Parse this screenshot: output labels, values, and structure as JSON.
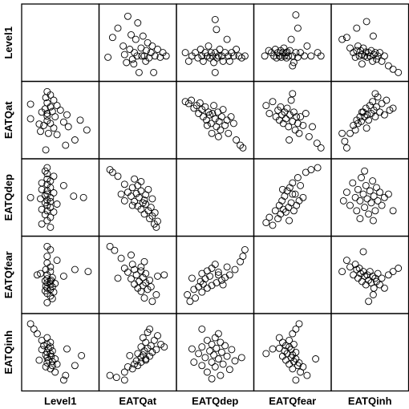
{
  "chart_data": {
    "type": "scatter",
    "title": "",
    "variables": [
      "Level1",
      "EATQat",
      "EATQdep",
      "EATQfear",
      "EATQinh"
    ],
    "grid": false,
    "lower_triangle_mirrors_upper": true,
    "pairs": [
      {
        "x": "EATQat",
        "y": "Level1",
        "points": [
          [
            0.05,
            0.28
          ],
          [
            0.12,
            0.58
          ],
          [
            0.2,
            0.72
          ],
          [
            0.28,
            0.45
          ],
          [
            0.33,
            0.2
          ],
          [
            0.35,
            0.9
          ],
          [
            0.38,
            0.4
          ],
          [
            0.4,
            0.62
          ],
          [
            0.42,
            0.25
          ],
          [
            0.45,
            0.35
          ],
          [
            0.47,
            0.55
          ],
          [
            0.49,
            0.3
          ],
          [
            0.5,
            0.8
          ],
          [
            0.52,
            0.05
          ],
          [
            0.55,
            0.42
          ],
          [
            0.58,
            0.6
          ],
          [
            0.6,
            0.3
          ],
          [
            0.62,
            0.22
          ],
          [
            0.63,
            0.38
          ],
          [
            0.65,
            0.5
          ],
          [
            0.67,
            0.27
          ],
          [
            0.7,
            0.35
          ],
          [
            0.72,
            0.45
          ],
          [
            0.74,
            0.05
          ],
          [
            0.76,
            0.3
          ],
          [
            0.8,
            0.4
          ],
          [
            0.84,
            0.28
          ],
          [
            0.88,
            0.35
          ],
          [
            0.93,
            0.3
          ],
          [
            0.3,
            0.32
          ],
          [
            0.56,
            0.3
          ],
          [
            0.44,
            0.18
          ]
        ]
      },
      {
        "x": "EATQdep",
        "y": "Level1",
        "points": [
          [
            0.05,
            0.35
          ],
          [
            0.1,
            0.22
          ],
          [
            0.15,
            0.3
          ],
          [
            0.2,
            0.35
          ],
          [
            0.24,
            0.27
          ],
          [
            0.28,
            0.4
          ],
          [
            0.3,
            0.3
          ],
          [
            0.32,
            0.22
          ],
          [
            0.35,
            0.35
          ],
          [
            0.38,
            0.3
          ],
          [
            0.4,
            0.45
          ],
          [
            0.42,
            0.27
          ],
          [
            0.44,
            0.35
          ],
          [
            0.46,
            0.3
          ],
          [
            0.48,
            0.2
          ],
          [
            0.5,
            0.35
          ],
          [
            0.53,
            0.27
          ],
          [
            0.55,
            0.3
          ],
          [
            0.57,
            0.4
          ],
          [
            0.6,
            0.3
          ],
          [
            0.62,
            0.22
          ],
          [
            0.65,
            0.35
          ],
          [
            0.68,
            0.55
          ],
          [
            0.7,
            0.3
          ],
          [
            0.72,
            0.22
          ],
          [
            0.75,
            0.35
          ],
          [
            0.78,
            0.3
          ],
          [
            0.82,
            0.4
          ],
          [
            0.86,
            0.3
          ],
          [
            0.9,
            0.27
          ],
          [
            0.95,
            0.3
          ],
          [
            0.5,
            0.85
          ],
          [
            0.52,
            0.7
          ],
          [
            0.5,
            0.05
          ]
        ]
      },
      {
        "x": "EATQfear",
        "y": "Level1",
        "points": [
          [
            0.08,
            0.3
          ],
          [
            0.14,
            0.38
          ],
          [
            0.18,
            0.35
          ],
          [
            0.22,
            0.3
          ],
          [
            0.24,
            0.4
          ],
          [
            0.26,
            0.27
          ],
          [
            0.28,
            0.35
          ],
          [
            0.3,
            0.3
          ],
          [
            0.32,
            0.38
          ],
          [
            0.33,
            0.28
          ],
          [
            0.35,
            0.35
          ],
          [
            0.37,
            0.42
          ],
          [
            0.38,
            0.3
          ],
          [
            0.4,
            0.35
          ],
          [
            0.41,
            0.27
          ],
          [
            0.42,
            0.36
          ],
          [
            0.44,
            0.3
          ],
          [
            0.46,
            0.38
          ],
          [
            0.48,
            0.55
          ],
          [
            0.5,
            0.3
          ],
          [
            0.52,
            0.2
          ],
          [
            0.55,
            0.35
          ],
          [
            0.58,
            0.28
          ],
          [
            0.62,
            0.35
          ],
          [
            0.68,
            0.3
          ],
          [
            0.72,
            0.45
          ],
          [
            0.78,
            0.3
          ],
          [
            0.88,
            0.35
          ],
          [
            0.93,
            0.3
          ],
          [
            0.55,
            0.92
          ],
          [
            0.58,
            0.72
          ],
          [
            0.5,
            0.15
          ]
        ]
      },
      {
        "x": "EATQinh",
        "y": "Level1",
        "points": [
          [
            0.08,
            0.55
          ],
          [
            0.15,
            0.58
          ],
          [
            0.2,
            0.42
          ],
          [
            0.25,
            0.35
          ],
          [
            0.28,
            0.28
          ],
          [
            0.3,
            0.38
          ],
          [
            0.32,
            0.45
          ],
          [
            0.34,
            0.3
          ],
          [
            0.36,
            0.38
          ],
          [
            0.38,
            0.32
          ],
          [
            0.4,
            0.42
          ],
          [
            0.42,
            0.3
          ],
          [
            0.44,
            0.36
          ],
          [
            0.46,
            0.28
          ],
          [
            0.48,
            0.35
          ],
          [
            0.5,
            0.3
          ],
          [
            0.52,
            0.38
          ],
          [
            0.54,
            0.22
          ],
          [
            0.56,
            0.32
          ],
          [
            0.58,
            0.35
          ],
          [
            0.6,
            0.25
          ],
          [
            0.62,
            0.3
          ],
          [
            0.65,
            0.35
          ],
          [
            0.68,
            0.22
          ],
          [
            0.72,
            0.3
          ],
          [
            0.78,
            0.15
          ],
          [
            0.85,
            0.1
          ],
          [
            0.93,
            0.05
          ],
          [
            0.3,
            0.72
          ],
          [
            0.45,
            0.82
          ],
          [
            0.55,
            0.6
          ],
          [
            0.38,
            0.18
          ]
        ]
      },
      {
        "x": "EATQdep",
        "y": "EATQat",
        "points": [
          [
            0.05,
            0.78
          ],
          [
            0.1,
            0.75
          ],
          [
            0.14,
            0.8
          ],
          [
            0.18,
            0.68
          ],
          [
            0.22,
            0.72
          ],
          [
            0.25,
            0.6
          ],
          [
            0.27,
            0.76
          ],
          [
            0.3,
            0.66
          ],
          [
            0.32,
            0.55
          ],
          [
            0.35,
            0.7
          ],
          [
            0.37,
            0.5
          ],
          [
            0.4,
            0.62
          ],
          [
            0.42,
            0.58
          ],
          [
            0.44,
            0.45
          ],
          [
            0.46,
            0.6
          ],
          [
            0.48,
            0.72
          ],
          [
            0.5,
            0.52
          ],
          [
            0.52,
            0.4
          ],
          [
            0.54,
            0.62
          ],
          [
            0.56,
            0.48
          ],
          [
            0.58,
            0.35
          ],
          [
            0.6,
            0.55
          ],
          [
            0.62,
            0.66
          ],
          [
            0.65,
            0.42
          ],
          [
            0.68,
            0.5
          ],
          [
            0.7,
            0.3
          ],
          [
            0.74,
            0.55
          ],
          [
            0.78,
            0.45
          ],
          [
            0.82,
            0.2
          ],
          [
            0.88,
            0.12
          ],
          [
            0.92,
            0.08
          ],
          [
            0.45,
            0.3
          ],
          [
            0.55,
            0.25
          ],
          [
            0.38,
            0.42
          ]
        ]
      },
      {
        "x": "EATQfear",
        "y": "EATQat",
        "points": [
          [
            0.1,
            0.72
          ],
          [
            0.15,
            0.6
          ],
          [
            0.2,
            0.78
          ],
          [
            0.25,
            0.55
          ],
          [
            0.28,
            0.65
          ],
          [
            0.3,
            0.5
          ],
          [
            0.32,
            0.7
          ],
          [
            0.34,
            0.58
          ],
          [
            0.36,
            0.45
          ],
          [
            0.38,
            0.62
          ],
          [
            0.4,
            0.52
          ],
          [
            0.42,
            0.68
          ],
          [
            0.44,
            0.4
          ],
          [
            0.46,
            0.58
          ],
          [
            0.48,
            0.8
          ],
          [
            0.5,
            0.48
          ],
          [
            0.52,
            0.62
          ],
          [
            0.54,
            0.35
          ],
          [
            0.56,
            0.55
          ],
          [
            0.58,
            0.45
          ],
          [
            0.6,
            0.3
          ],
          [
            0.62,
            0.55
          ],
          [
            0.66,
            0.42
          ],
          [
            0.7,
            0.6
          ],
          [
            0.75,
            0.25
          ],
          [
            0.8,
            0.4
          ],
          [
            0.87,
            0.15
          ],
          [
            0.93,
            0.08
          ],
          [
            0.45,
            0.2
          ],
          [
            0.5,
            0.9
          ]
        ]
      },
      {
        "x": "EATQinh",
        "y": "EATQat",
        "points": [
          [
            0.08,
            0.3
          ],
          [
            0.12,
            0.18
          ],
          [
            0.15,
            0.08
          ],
          [
            0.2,
            0.3
          ],
          [
            0.25,
            0.42
          ],
          [
            0.28,
            0.35
          ],
          [
            0.3,
            0.5
          ],
          [
            0.32,
            0.45
          ],
          [
            0.35,
            0.55
          ],
          [
            0.37,
            0.48
          ],
          [
            0.4,
            0.62
          ],
          [
            0.42,
            0.55
          ],
          [
            0.44,
            0.68
          ],
          [
            0.46,
            0.58
          ],
          [
            0.48,
            0.5
          ],
          [
            0.5,
            0.72
          ],
          [
            0.52,
            0.6
          ],
          [
            0.54,
            0.78
          ],
          [
            0.56,
            0.65
          ],
          [
            0.58,
            0.55
          ],
          [
            0.6,
            0.7
          ],
          [
            0.62,
            0.85
          ],
          [
            0.65,
            0.62
          ],
          [
            0.68,
            0.75
          ],
          [
            0.72,
            0.58
          ],
          [
            0.75,
            0.8
          ],
          [
            0.8,
            0.65
          ],
          [
            0.85,
            0.68
          ],
          [
            0.45,
            0.38
          ],
          [
            0.38,
            0.62
          ],
          [
            0.58,
            0.9
          ]
        ]
      },
      {
        "x": "EATQfear",
        "y": "EATQdep",
        "points": [
          [
            0.1,
            0.12
          ],
          [
            0.15,
            0.2
          ],
          [
            0.2,
            0.08
          ],
          [
            0.24,
            0.3
          ],
          [
            0.28,
            0.18
          ],
          [
            0.3,
            0.38
          ],
          [
            0.32,
            0.25
          ],
          [
            0.34,
            0.45
          ],
          [
            0.36,
            0.32
          ],
          [
            0.38,
            0.52
          ],
          [
            0.4,
            0.28
          ],
          [
            0.42,
            0.6
          ],
          [
            0.44,
            0.35
          ],
          [
            0.46,
            0.65
          ],
          [
            0.48,
            0.42
          ],
          [
            0.5,
            0.72
          ],
          [
            0.52,
            0.3
          ],
          [
            0.54,
            0.55
          ],
          [
            0.56,
            0.38
          ],
          [
            0.58,
            0.8
          ],
          [
            0.6,
            0.45
          ],
          [
            0.62,
            0.68
          ],
          [
            0.66,
            0.5
          ],
          [
            0.7,
            0.88
          ],
          [
            0.78,
            0.92
          ],
          [
            0.88,
            0.95
          ],
          [
            0.45,
            0.15
          ],
          [
            0.5,
            0.55
          ],
          [
            0.35,
            0.62
          ]
        ]
      },
      {
        "x": "EATQinh",
        "y": "EATQdep",
        "points": [
          [
            0.1,
            0.45
          ],
          [
            0.15,
            0.58
          ],
          [
            0.2,
            0.38
          ],
          [
            0.24,
            0.72
          ],
          [
            0.28,
            0.5
          ],
          [
            0.3,
            0.3
          ],
          [
            0.32,
            0.62
          ],
          [
            0.35,
            0.45
          ],
          [
            0.37,
            0.8
          ],
          [
            0.4,
            0.55
          ],
          [
            0.42,
            0.35
          ],
          [
            0.44,
            0.68
          ],
          [
            0.46,
            0.48
          ],
          [
            0.48,
            0.25
          ],
          [
            0.5,
            0.6
          ],
          [
            0.52,
            0.42
          ],
          [
            0.54,
            0.75
          ],
          [
            0.56,
            0.52
          ],
          [
            0.58,
            0.3
          ],
          [
            0.6,
            0.65
          ],
          [
            0.62,
            0.45
          ],
          [
            0.65,
            0.58
          ],
          [
            0.68,
            0.38
          ],
          [
            0.72,
            0.5
          ],
          [
            0.78,
            0.55
          ],
          [
            0.85,
            0.3
          ],
          [
            0.42,
            0.9
          ],
          [
            0.55,
            0.15
          ],
          [
            0.35,
            0.18
          ]
        ]
      },
      {
        "x": "EATQinh",
        "y": "EATQfear",
        "points": [
          [
            0.08,
            0.55
          ],
          [
            0.15,
            0.72
          ],
          [
            0.2,
            0.62
          ],
          [
            0.25,
            0.5
          ],
          [
            0.28,
            0.66
          ],
          [
            0.3,
            0.58
          ],
          [
            0.32,
            0.45
          ],
          [
            0.34,
            0.6
          ],
          [
            0.36,
            0.52
          ],
          [
            0.38,
            0.4
          ],
          [
            0.4,
            0.55
          ],
          [
            0.42,
            0.48
          ],
          [
            0.44,
            0.35
          ],
          [
            0.46,
            0.5
          ],
          [
            0.48,
            0.42
          ],
          [
            0.5,
            0.55
          ],
          [
            0.52,
            0.38
          ],
          [
            0.54,
            0.48
          ],
          [
            0.56,
            0.3
          ],
          [
            0.58,
            0.45
          ],
          [
            0.6,
            0.4
          ],
          [
            0.62,
            0.52
          ],
          [
            0.65,
            0.35
          ],
          [
            0.68,
            0.45
          ],
          [
            0.72,
            0.3
          ],
          [
            0.78,
            0.5
          ],
          [
            0.85,
            0.55
          ],
          [
            0.93,
            0.6
          ],
          [
            0.4,
            0.85
          ],
          [
            0.55,
            0.2
          ],
          [
            0.48,
            0.1
          ]
        ]
      }
    ]
  }
}
